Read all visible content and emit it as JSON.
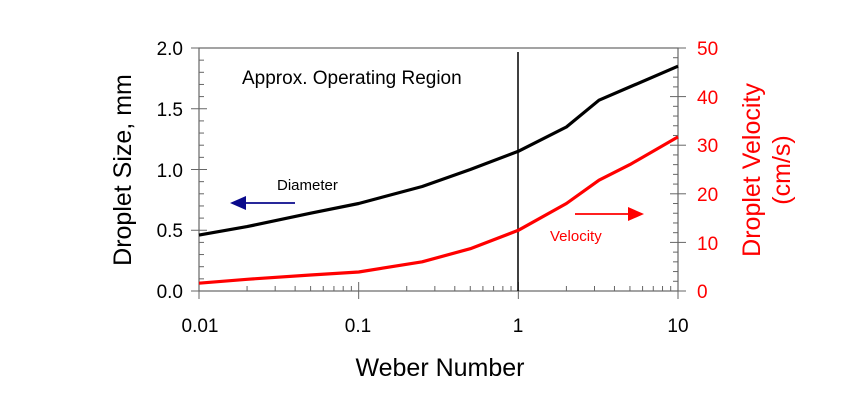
{
  "chart_data": {
    "type": "line",
    "title": "",
    "xlabel": "Weber Number",
    "ylabel": "Droplet Size, mm",
    "ylabel_right": [
      "Droplet Velocity",
      "(cm/s)"
    ],
    "xscale": "log",
    "xlim": [
      0.01,
      10
    ],
    "ylim": [
      0,
      2.0
    ],
    "ylim_right": [
      0,
      50
    ],
    "x_ticks": [
      0.01,
      0.1,
      1,
      10
    ],
    "x_tick_labels": [
      "0.01",
      "0.1",
      "1",
      "10"
    ],
    "y_ticks": [
      0,
      0.5,
      1.0,
      1.5,
      2.0
    ],
    "y_tick_labels": [
      "0.0",
      "0.5",
      "1.0",
      "1.5",
      "2.0"
    ],
    "y_right_ticks": [
      0,
      10,
      20,
      30,
      40,
      50
    ],
    "y_right_tick_labels": [
      "0",
      "10",
      "20",
      "30",
      "40",
      "50"
    ],
    "grid": false,
    "legend": "none",
    "series": [
      {
        "name": "Diameter",
        "axis": "left",
        "color": "#000000",
        "x": [
          0.01,
          0.02,
          0.05,
          0.1,
          0.25,
          0.5,
          1,
          2,
          3.2,
          5,
          10
        ],
        "values": [
          0.46,
          0.53,
          0.64,
          0.72,
          0.86,
          1.0,
          1.15,
          1.35,
          1.57,
          1.68,
          1.85
        ]
      },
      {
        "name": "Velocity",
        "axis": "right",
        "color": "#ff0000",
        "x": [
          0.01,
          0.02,
          0.05,
          0.1,
          0.25,
          0.5,
          1,
          2,
          3.2,
          5,
          10
        ],
        "values": [
          1.6,
          2.4,
          3.3,
          3.9,
          6.0,
          8.7,
          12.5,
          18.0,
          22.8,
          26.0,
          31.7
        ]
      }
    ],
    "annotations": [
      {
        "text": "Approx. Operating Region",
        "color": "#000000"
      },
      {
        "text": "Diameter",
        "color": "#000000",
        "arrow": "left",
        "arrow_color": "#0a0a8c"
      },
      {
        "text": "Velocity",
        "color": "#ff0000",
        "arrow": "right",
        "arrow_color": "#ff0000"
      },
      {
        "type": "vline",
        "x": 1,
        "color": "#000000"
      }
    ]
  },
  "colors": {
    "left_axis": "#000000",
    "right_axis": "#ff0000",
    "frame": "#555555"
  }
}
